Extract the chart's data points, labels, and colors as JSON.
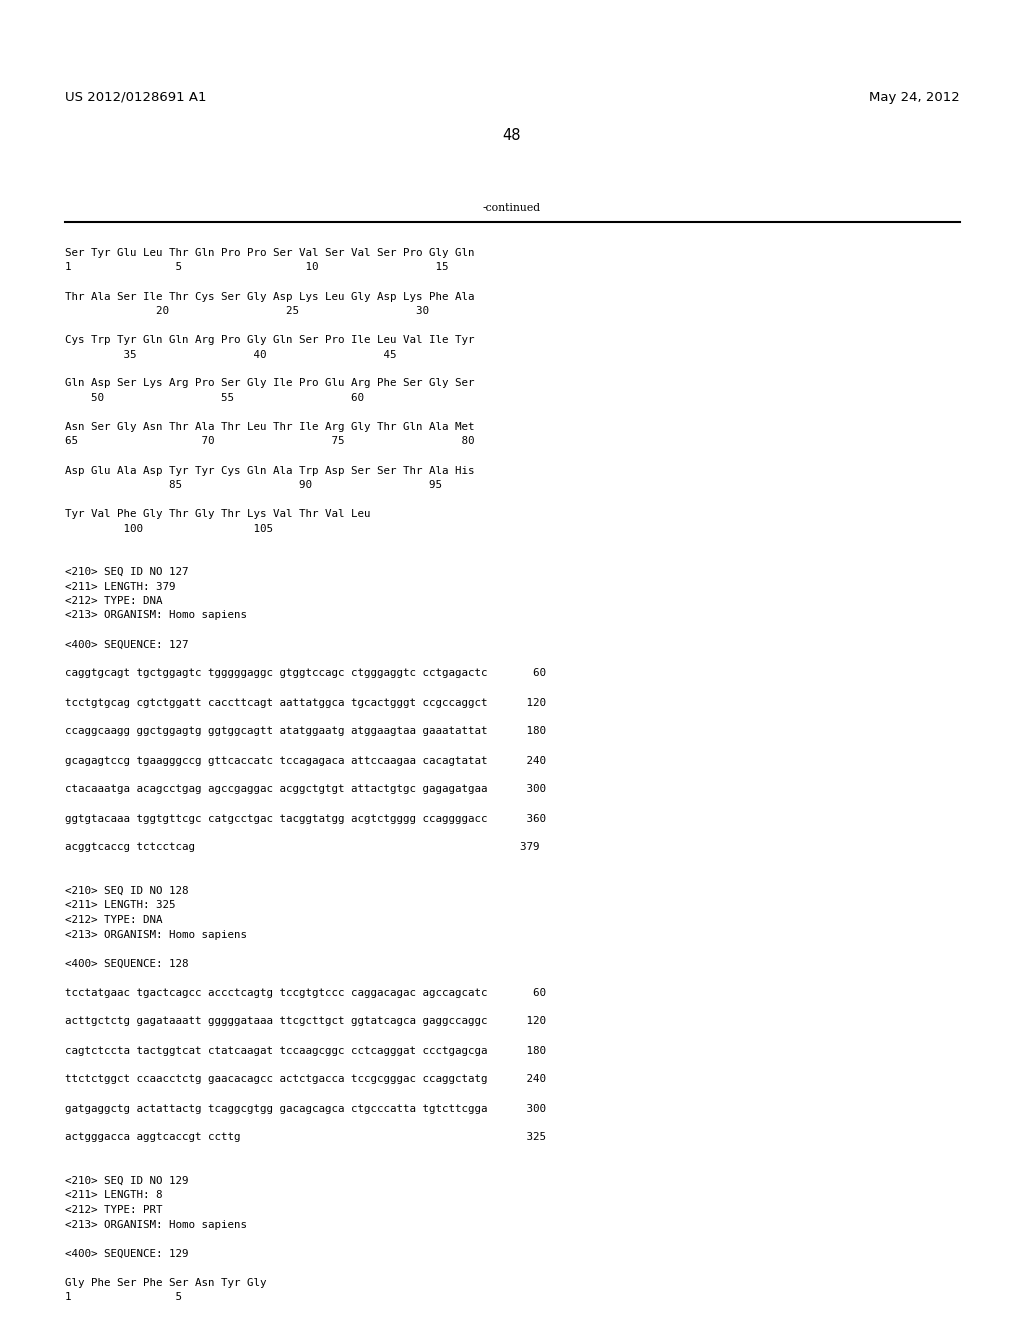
{
  "header_left": "US 2012/0128691 A1",
  "header_right": "May 24, 2012",
  "page_number": "48",
  "continued_label": "-continued",
  "background_color": "#ffffff",
  "text_color": "#000000",
  "font_size_header": 9.5,
  "font_size_body": 7.8,
  "font_size_page": 10.5,
  "body_lines": [
    "Ser Tyr Glu Leu Thr Gln Pro Pro Ser Val Ser Val Ser Pro Gly Gln",
    "1                5                   10                  15",
    "",
    "Thr Ala Ser Ile Thr Cys Ser Gly Asp Lys Leu Gly Asp Lys Phe Ala",
    "              20                  25                  30",
    "",
    "Cys Trp Tyr Gln Gln Arg Pro Gly Gln Ser Pro Ile Leu Val Ile Tyr",
    "         35                  40                  45",
    "",
    "Gln Asp Ser Lys Arg Pro Ser Gly Ile Pro Glu Arg Phe Ser Gly Ser",
    "    50                  55                  60",
    "",
    "Asn Ser Gly Asn Thr Ala Thr Leu Thr Ile Arg Gly Thr Gln Ala Met",
    "65                   70                  75                  80",
    "",
    "Asp Glu Ala Asp Tyr Tyr Cys Gln Ala Trp Asp Ser Ser Thr Ala His",
    "                85                  90                  95",
    "",
    "Tyr Val Phe Gly Thr Gly Thr Lys Val Thr Val Leu",
    "         100                 105",
    "",
    "",
    "<210> SEQ ID NO 127",
    "<211> LENGTH: 379",
    "<212> TYPE: DNA",
    "<213> ORGANISM: Homo sapiens",
    "",
    "<400> SEQUENCE: 127",
    "",
    "caggtgcagt tgctggagtc tgggggaggc gtggtccagc ctgggaggtc cctgagactc       60",
    "",
    "tcctgtgcag cgtctggatt caccttcagt aattatggca tgcactgggt ccgccaggct      120",
    "",
    "ccaggcaagg ggctggagtg ggtggcagtt atatggaatg atggaagtaa gaaatattat      180",
    "",
    "gcagagtccg tgaagggccg gttcaccatc tccagagaca attccaagaa cacagtatat      240",
    "",
    "ctacaaatga acagcctgag agccgaggac acggctgtgt attactgtgc gagagatgaa      300",
    "",
    "ggtgtacaaa tggtgttcgc catgcctgac tacggtatgg acgtctgggg ccaggggacc      360",
    "",
    "acggtcaccg tctcctcag                                                  379",
    "",
    "",
    "<210> SEQ ID NO 128",
    "<211> LENGTH: 325",
    "<212> TYPE: DNA",
    "<213> ORGANISM: Homo sapiens",
    "",
    "<400> SEQUENCE: 128",
    "",
    "tcctatgaac tgactcagcc accctcagtg tccgtgtccc caggacagac agccagcatc       60",
    "",
    "acttgctctg gagataaatt gggggataaa ttcgcttgct ggtatcagca gaggccaggc      120",
    "",
    "cagtctccta tactggtcat ctatcaagat tccaagcggc cctcagggat ccctgagcga      180",
    "",
    "ttctctggct ccaacctctg gaacacagcc actctgacca tccgcgggac ccaggctatg      240",
    "",
    "gatgaggctg actattactg tcaggcgtgg gacagcagca ctgcccatta tgtcttcgga      300",
    "",
    "actgggacca aggtcaccgt ccttg                                            325",
    "",
    "",
    "<210> SEQ ID NO 129",
    "<211> LENGTH: 8",
    "<212> TYPE: PRT",
    "<213> ORGANISM: Homo sapiens",
    "",
    "<400> SEQUENCE: 129",
    "",
    "Gly Phe Ser Phe Ser Asn Tyr Gly",
    "1                5"
  ]
}
